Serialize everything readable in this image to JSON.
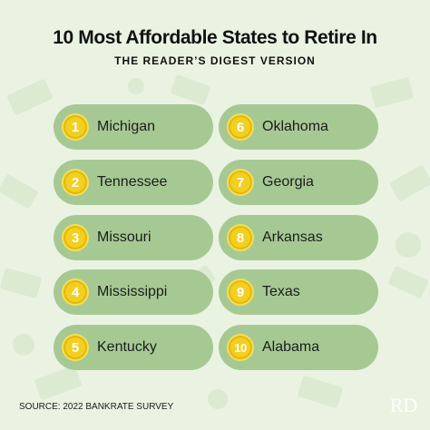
{
  "header": {
    "title": "10 Most Affordable States to Retire In",
    "subtitle": "THE READER’S DIGEST VERSION"
  },
  "states": [
    {
      "rank": "1",
      "name": "Michigan"
    },
    {
      "rank": "2",
      "name": "Tennessee"
    },
    {
      "rank": "3",
      "name": "Missouri"
    },
    {
      "rank": "4",
      "name": "Mississippi"
    },
    {
      "rank": "5",
      "name": "Kentucky"
    },
    {
      "rank": "6",
      "name": "Oklahoma"
    },
    {
      "rank": "7",
      "name": "Georgia"
    },
    {
      "rank": "8",
      "name": "Arkansas"
    },
    {
      "rank": "9",
      "name": "Texas"
    },
    {
      "rank": "10",
      "name": "Alabama"
    }
  ],
  "footer": {
    "source": "SOURCE: 2022 BANKRATE SURVEY",
    "logo": "RD"
  },
  "colors": {
    "background": "#eaf3e2",
    "pill": "#a6c994",
    "coin": "#f3cf1f"
  }
}
